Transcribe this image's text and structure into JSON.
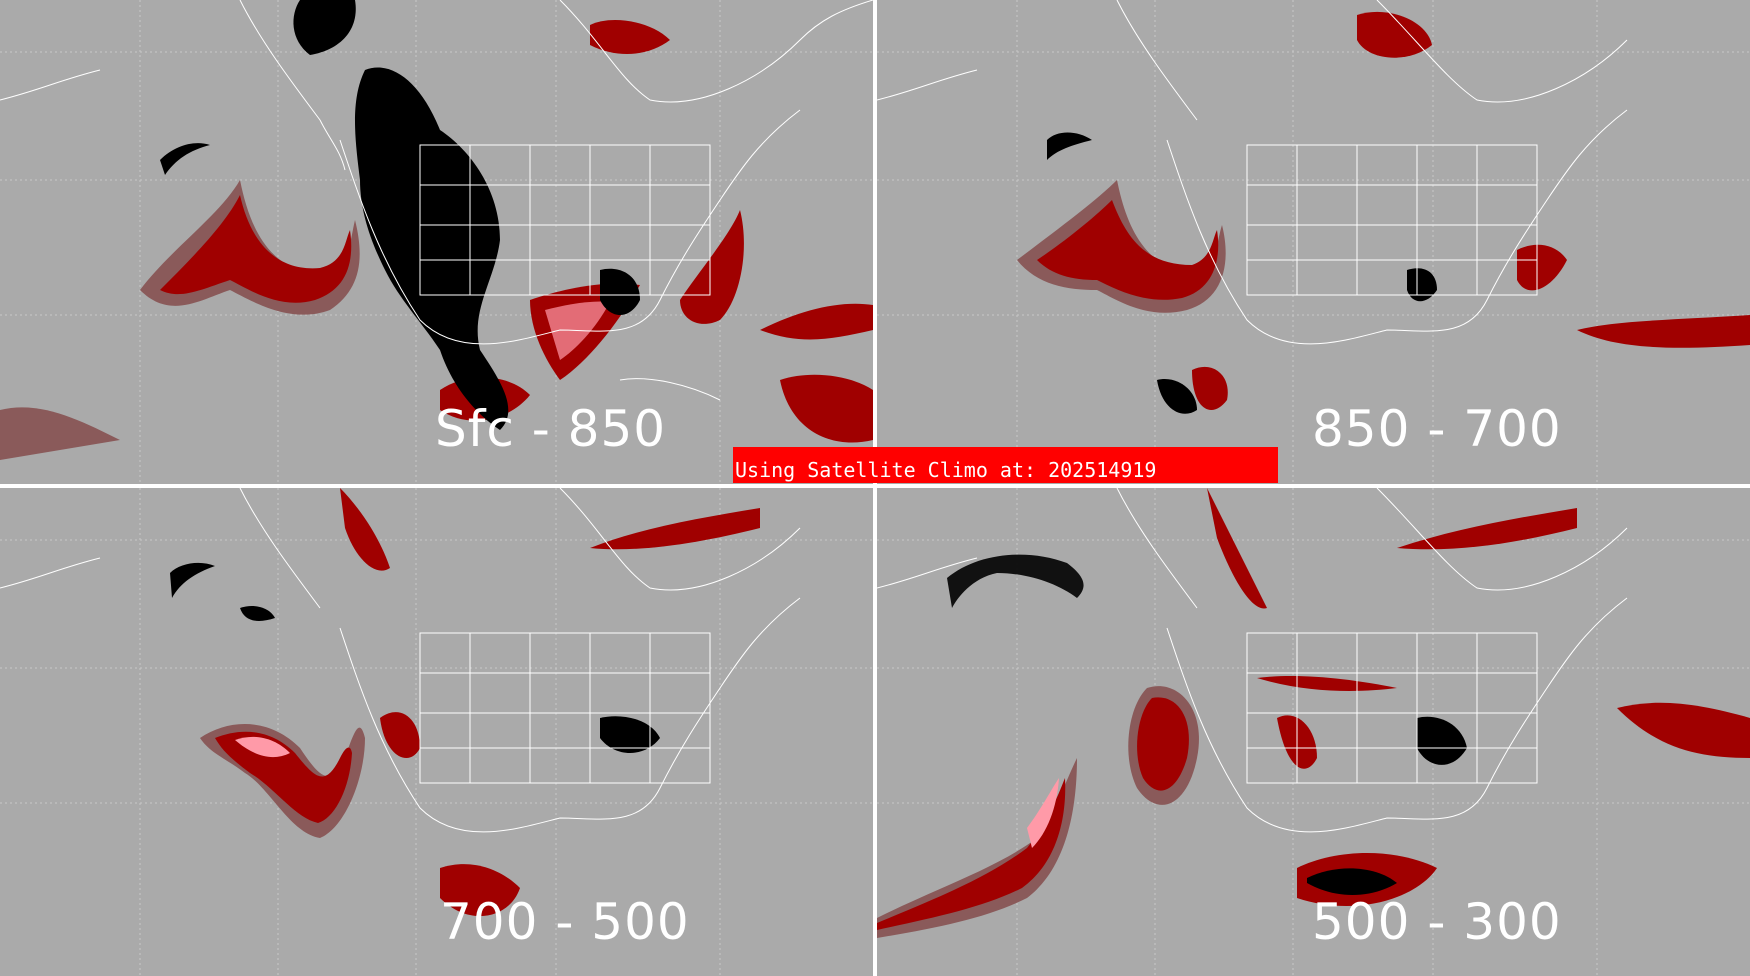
{
  "panels": [
    {
      "id": "p1",
      "label": "Sfc - 850"
    },
    {
      "id": "p2",
      "label": "850 - 700"
    },
    {
      "id": "p3",
      "label": "700 - 500"
    },
    {
      "id": "p4",
      "label": "500 - 300"
    }
  ],
  "banner": {
    "text": "Using Satellite Climo at: 202514919"
  },
  "colors": {
    "background": "#aaaaaa",
    "dark_red": "#a00000",
    "dim_red": "#8a5a5a",
    "pink": "#ff9aa8",
    "black": "#000000",
    "map_lines": "#ffffff",
    "banner": "#ff0000"
  }
}
